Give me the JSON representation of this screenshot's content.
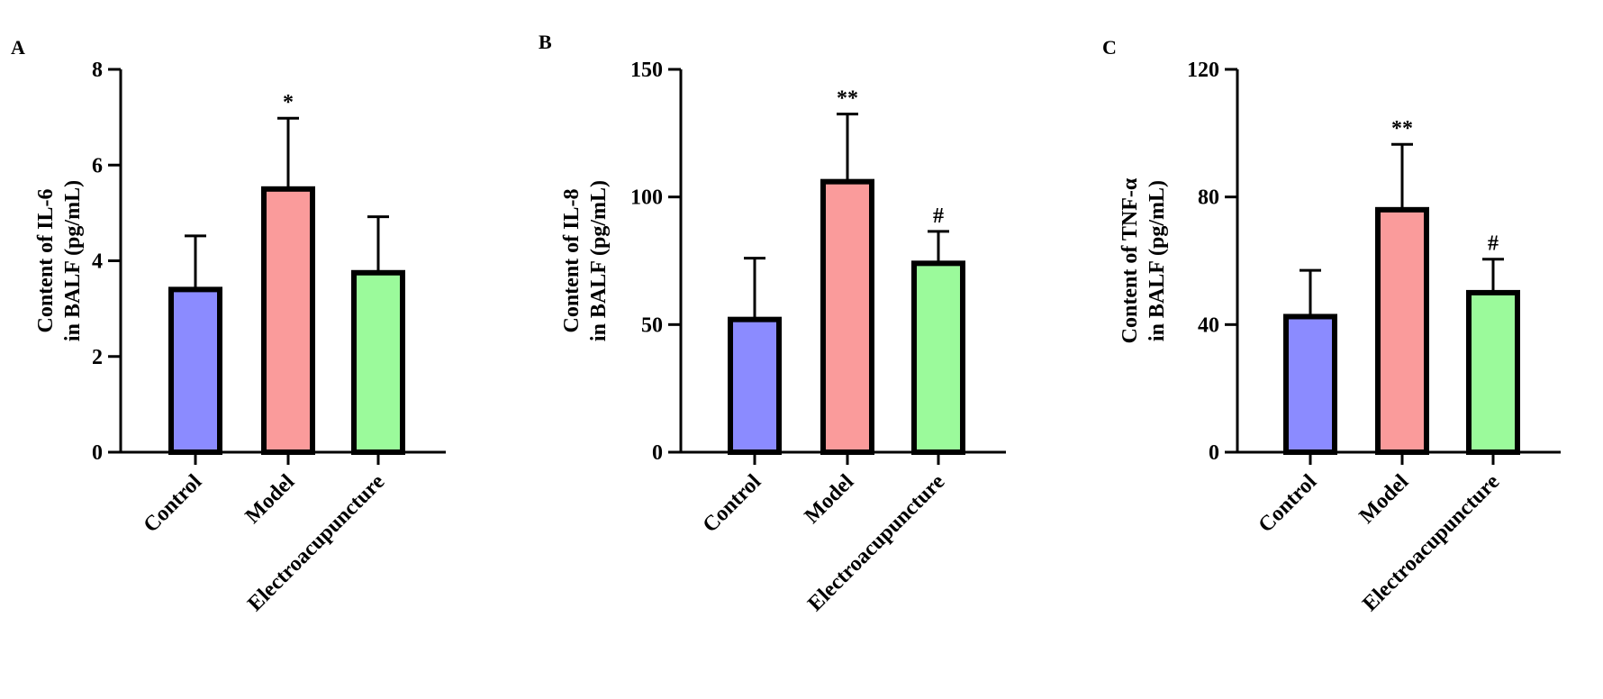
{
  "chart_data": [
    {
      "panel": "A",
      "type": "bar",
      "categories": [
        "Control",
        "Model",
        "Electroacupuncture"
      ],
      "values": [
        3.4,
        5.5,
        3.75
      ],
      "errors": [
        1.12,
        1.48,
        1.17
      ],
      "annotations": [
        "",
        "*",
        ""
      ],
      "colors": [
        "#8b8bff",
        "#fa9b9b",
        "#9bfa9b"
      ],
      "ylabel": [
        "Content of IL-6",
        "in BALF (pg/mL)"
      ],
      "yticks": [
        "0",
        "2",
        "4",
        "6",
        "8"
      ],
      "ytick_values": [
        0,
        2,
        4,
        6,
        8
      ],
      "ylim": [
        0,
        8
      ],
      "grid": false
    },
    {
      "panel": "B",
      "type": "bar",
      "categories": [
        "Control",
        "Model",
        "Electroacupuncture"
      ],
      "values": [
        52,
        106,
        74
      ],
      "errors": [
        24,
        26.5,
        12.5
      ],
      "annotations": [
        "",
        "**",
        "#"
      ],
      "colors": [
        "#8b8bff",
        "#fa9b9b",
        "#9bfa9b"
      ],
      "ylabel": [
        "Content of IL-8",
        "in BALF (pg/mL)"
      ],
      "yticks": [
        "0",
        "50",
        "100",
        "150"
      ],
      "ytick_values": [
        0,
        50,
        100,
        150
      ],
      "ylim": [
        0,
        150
      ],
      "grid": false
    },
    {
      "panel": "C",
      "type": "bar",
      "categories": [
        "Control",
        "Model",
        "Electroacupuncture"
      ],
      "values": [
        42.5,
        76,
        50
      ],
      "errors": [
        14.5,
        20.5,
        10.5
      ],
      "annotations": [
        "",
        "**",
        "#"
      ],
      "colors": [
        "#8b8bff",
        "#fa9b9b",
        "#9bfa9b"
      ],
      "ylabel": [
        "Content of TNF-α",
        "in BALF (pg/mL)"
      ],
      "yticks": [
        "0",
        "40",
        "80",
        "120"
      ],
      "ytick_values": [
        0,
        40,
        80,
        120
      ],
      "ylim": [
        0,
        120
      ],
      "grid": false
    }
  ]
}
